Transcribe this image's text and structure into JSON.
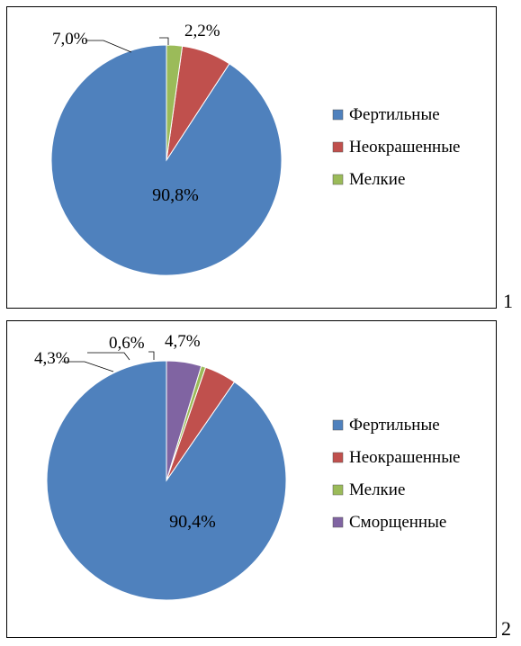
{
  "panel_numbers": [
    "1",
    "2"
  ],
  "chart_data": [
    {
      "type": "pie",
      "start_angle_deg": 90,
      "direction": "counterclockwise",
      "legend_position": "right",
      "slices": [
        {
          "label": "Фертильные",
          "value": 90.8,
          "display": "90,8%",
          "color": "#4F81BD"
        },
        {
          "label": "Неокрашенные",
          "value": 7.0,
          "display": "7,0%",
          "color": "#C0504D"
        },
        {
          "label": "Мелкие",
          "value": 2.2,
          "display": "2,2%",
          "color": "#9BBB59"
        }
      ]
    },
    {
      "type": "pie",
      "start_angle_deg": 90,
      "direction": "counterclockwise",
      "legend_position": "right",
      "slices": [
        {
          "label": "Фертильные",
          "value": 90.4,
          "display": "90,4%",
          "color": "#4F81BD"
        },
        {
          "label": "Неокрашенные",
          "value": 4.3,
          "display": "4,3%",
          "color": "#C0504D"
        },
        {
          "label": "Мелкие",
          "value": 0.6,
          "display": "0,6%",
          "color": "#9BBB59"
        },
        {
          "label": "Сморщенные",
          "value": 4.7,
          "display": "4,7%",
          "color": "#8064A2"
        }
      ]
    }
  ]
}
